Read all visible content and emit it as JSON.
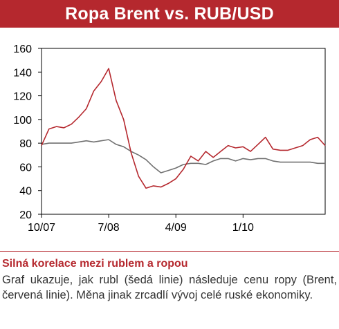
{
  "chart_data": {
    "type": "line",
    "title": "Ropa Brent vs. RUB/USD",
    "x_ticks": [
      "10/07",
      "7/08",
      "4/09",
      "1/10"
    ],
    "y_ticks": [
      20,
      40,
      60,
      80,
      100,
      120,
      140,
      160
    ],
    "ylim": [
      20,
      160
    ],
    "xlim": [
      "2007-10",
      "2010-12"
    ],
    "grid": false,
    "legend": "none",
    "series": [
      {
        "color": "#b5282e",
        "points": [
          [
            "2007-10",
            78
          ],
          [
            "2007-11",
            92
          ],
          [
            "2007-12",
            94
          ],
          [
            "2008-01",
            93
          ],
          [
            "2008-02",
            96
          ],
          [
            "2008-03",
            102
          ],
          [
            "2008-04",
            109
          ],
          [
            "2008-05",
            124
          ],
          [
            "2008-06",
            132
          ],
          [
            "2008-07",
            143
          ],
          [
            "2008-08",
            116
          ],
          [
            "2008-09",
            100
          ],
          [
            "2008-10",
            72
          ],
          [
            "2008-11",
            52
          ],
          [
            "2008-12",
            42
          ],
          [
            "2009-01",
            44
          ],
          [
            "2009-02",
            43
          ],
          [
            "2009-03",
            46
          ],
          [
            "2009-04",
            50
          ],
          [
            "2009-05",
            58
          ],
          [
            "2009-06",
            69
          ],
          [
            "2009-07",
            65
          ],
          [
            "2009-08",
            73
          ],
          [
            "2009-09",
            68
          ],
          [
            "2009-10",
            73
          ],
          [
            "2009-11",
            78
          ],
          [
            "2009-12",
            76
          ],
          [
            "2010-01",
            77
          ],
          [
            "2010-02",
            73
          ],
          [
            "2010-03",
            79
          ],
          [
            "2010-04",
            85
          ],
          [
            "2010-05",
            75
          ],
          [
            "2010-06",
            74
          ],
          [
            "2010-07",
            74
          ],
          [
            "2010-08",
            76
          ],
          [
            "2010-09",
            78
          ],
          [
            "2010-10",
            83
          ],
          [
            "2010-11",
            85
          ],
          [
            "2010-12",
            78
          ]
        ]
      },
      {
        "color": "#707070",
        "points": [
          [
            "2007-10",
            79
          ],
          [
            "2007-11",
            80
          ],
          [
            "2007-12",
            80
          ],
          [
            "2008-01",
            80
          ],
          [
            "2008-02",
            80
          ],
          [
            "2008-03",
            81
          ],
          [
            "2008-04",
            82
          ],
          [
            "2008-05",
            81
          ],
          [
            "2008-06",
            82
          ],
          [
            "2008-07",
            83
          ],
          [
            "2008-08",
            79
          ],
          [
            "2008-09",
            77
          ],
          [
            "2008-10",
            73
          ],
          [
            "2008-11",
            70
          ],
          [
            "2008-12",
            66
          ],
          [
            "2009-01",
            60
          ],
          [
            "2009-02",
            55
          ],
          [
            "2009-03",
            57
          ],
          [
            "2009-04",
            59
          ],
          [
            "2009-05",
            62
          ],
          [
            "2009-06",
            63
          ],
          [
            "2009-07",
            63
          ],
          [
            "2009-08",
            62
          ],
          [
            "2009-09",
            65
          ],
          [
            "2009-10",
            67
          ],
          [
            "2009-11",
            67
          ],
          [
            "2009-12",
            65
          ],
          [
            "2010-01",
            67
          ],
          [
            "2010-02",
            66
          ],
          [
            "2010-03",
            67
          ],
          [
            "2010-04",
            67
          ],
          [
            "2010-05",
            65
          ],
          [
            "2010-06",
            64
          ],
          [
            "2010-07",
            64
          ],
          [
            "2010-08",
            64
          ],
          [
            "2010-09",
            64
          ],
          [
            "2010-10",
            64
          ],
          [
            "2010-11",
            63
          ],
          [
            "2010-12",
            63
          ]
        ]
      }
    ]
  },
  "caption": {
    "heading": "Silná korelace mezi rublem a ropou",
    "text": "Graf ukazuje, jak rubl (šedá linie) následuje cenu ropy (Brent, červená linie). Měna jinak zrcadlí vývoj celé ruské ekonomiky."
  }
}
